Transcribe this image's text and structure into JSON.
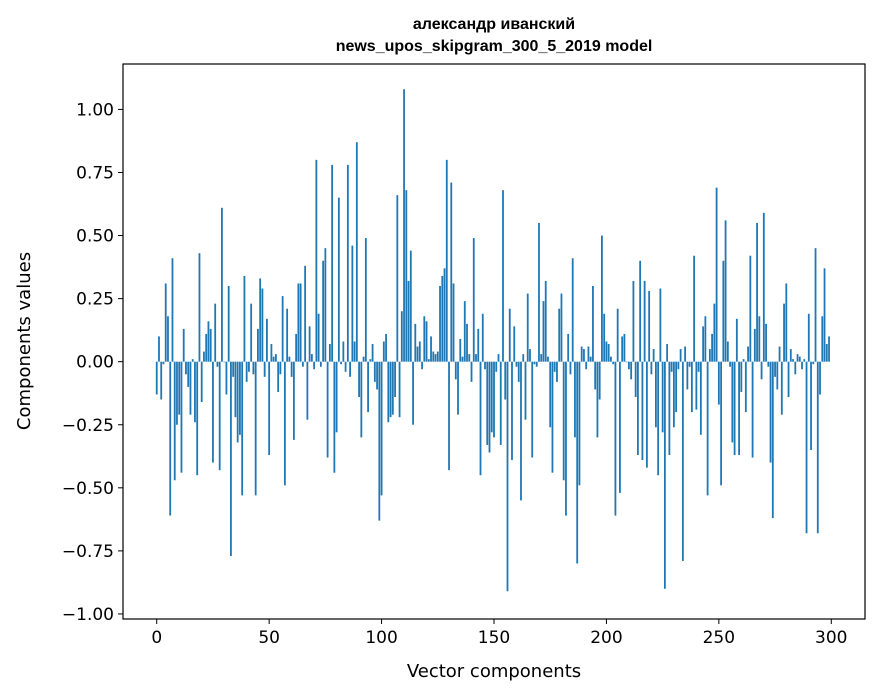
{
  "chart_data": {
    "type": "bar",
    "title_line1": "александр иванский",
    "title_line2": "news_upos_skipgram_300_5_2019 model",
    "xlabel": "Vector components",
    "ylabel": "Components values",
    "xlim": [
      -15,
      315
    ],
    "ylim": [
      -1.02,
      1.18
    ],
    "xticks": [
      0,
      50,
      100,
      150,
      200,
      250,
      300
    ],
    "xtick_labels": [
      "0",
      "50",
      "100",
      "150",
      "200",
      "250",
      "300"
    ],
    "yticks": [
      -1.0,
      -0.75,
      -0.5,
      -0.25,
      0.0,
      0.25,
      0.5,
      0.75,
      1.0
    ],
    "ytick_labels": [
      "−1.00",
      "−0.75",
      "−0.50",
      "−0.25",
      "0.00",
      "0.25",
      "0.50",
      "0.75",
      "1.00"
    ],
    "bar_color": "#1f77b4",
    "grid": false,
    "x": "0..299 (component index)",
    "values": [
      -0.13,
      0.1,
      -0.15,
      -0.01,
      0.31,
      0.18,
      -0.61,
      0.41,
      -0.47,
      -0.25,
      -0.21,
      -0.44,
      0.13,
      -0.05,
      -0.1,
      -0.21,
      0.01,
      -0.24,
      -0.45,
      0.43,
      -0.16,
      0.04,
      0.11,
      0.16,
      0.13,
      -0.4,
      0.23,
      -0.02,
      -0.43,
      0.61,
      0.0,
      -0.13,
      0.3,
      -0.77,
      -0.06,
      -0.22,
      -0.32,
      -0.29,
      -0.53,
      0.34,
      -0.08,
      -0.04,
      0.23,
      -0.05,
      -0.53,
      0.13,
      0.33,
      0.29,
      -0.06,
      0.17,
      -0.37,
      0.07,
      0.02,
      0.03,
      -0.12,
      -0.05,
      0.26,
      -0.49,
      0.21,
      0.02,
      -0.06,
      -0.31,
      0.11,
      0.31,
      0.31,
      -0.02,
      0.38,
      -0.23,
      0.14,
      0.03,
      -0.03,
      0.8,
      0.19,
      -0.02,
      0.4,
      0.45,
      -0.38,
      0.07,
      0.78,
      -0.44,
      -0.28,
      0.65,
      -0.01,
      0.08,
      -0.04,
      0.78,
      -0.06,
      0.46,
      0.08,
      0.87,
      -0.14,
      -0.3,
      0.02,
      0.49,
      -0.2,
      0.01,
      0.07,
      -0.08,
      -0.11,
      -0.63,
      -0.53,
      0.08,
      0.11,
      -0.24,
      -0.22,
      -0.21,
      -0.14,
      0.66,
      -0.22,
      0.2,
      1.08,
      0.68,
      0.32,
      0.44,
      -0.25,
      0.15,
      0.06,
      0.08,
      -0.03,
      0.18,
      0.16,
      0.01,
      0.1,
      0.04,
      0.03,
      0.04,
      0.3,
      0.34,
      0.37,
      0.8,
      -0.43,
      0.71,
      0.31,
      -0.07,
      -0.21,
      0.09,
      0.02,
      0.24,
      0.15,
      0.03,
      -0.08,
      0.49,
      0.03,
      0.13,
      -0.45,
      0.19,
      -0.03,
      -0.33,
      -0.36,
      -0.28,
      -0.3,
      -0.04,
      0.03,
      -0.33,
      0.68,
      -0.15,
      -0.91,
      0.21,
      -0.39,
      0.14,
      -0.02,
      -0.08,
      -0.55,
      0.03,
      -0.23,
      0.27,
      0.05,
      -0.38,
      -0.01,
      -0.02,
      0.55,
      0.03,
      0.24,
      0.32,
      0.02,
      -0.26,
      -0.44,
      -0.04,
      -0.08,
      0.21,
      0.27,
      -0.47,
      -0.61,
      0.11,
      -0.05,
      0.41,
      -0.3,
      -0.8,
      -0.49,
      0.06,
      0.05,
      -0.03,
      0.06,
      0.02,
      0.3,
      -0.11,
      -0.3,
      -0.15,
      0.5,
      0.19,
      0.08,
      0.07,
      0.02,
      -0.01,
      -0.61,
      0.21,
      -0.52,
      0.1,
      0.11,
      0.0,
      -0.03,
      -0.07,
      0.32,
      -0.14,
      -0.37,
      0.4,
      -0.39,
      0.32,
      -0.42,
      0.28,
      -0.05,
      0.05,
      -0.26,
      -0.45,
      0.29,
      -0.28,
      -0.9,
      0.07,
      -0.37,
      -0.04,
      -0.26,
      -0.2,
      -0.03,
      0.05,
      -0.79,
      0.06,
      -0.11,
      -0.02,
      -0.2,
      0.42,
      -0.19,
      -0.04,
      -0.29,
      0.14,
      0.18,
      -0.53,
      0.05,
      0.11,
      0.23,
      0.69,
      -0.17,
      -0.49,
      0.4,
      0.56,
      0.08,
      -0.02,
      -0.32,
      -0.37,
      0.17,
      -0.37,
      -0.12,
      0.01,
      -0.2,
      0.06,
      0.42,
      -0.38,
      0.13,
      0.55,
      0.18,
      -0.07,
      0.59,
      0.15,
      -0.02,
      -0.4,
      -0.62,
      -0.06,
      -0.11,
      0.06,
      -0.21,
      0.23,
      0.31,
      -0.14,
      0.05,
      0.01,
      -0.05,
      0.03,
      0.02,
      -0.03,
      0.01,
      -0.68,
      0.19,
      -0.35,
      -0.01,
      0.45,
      -0.68,
      -0.13,
      0.18,
      0.37,
      0.07,
      0.1
    ]
  }
}
